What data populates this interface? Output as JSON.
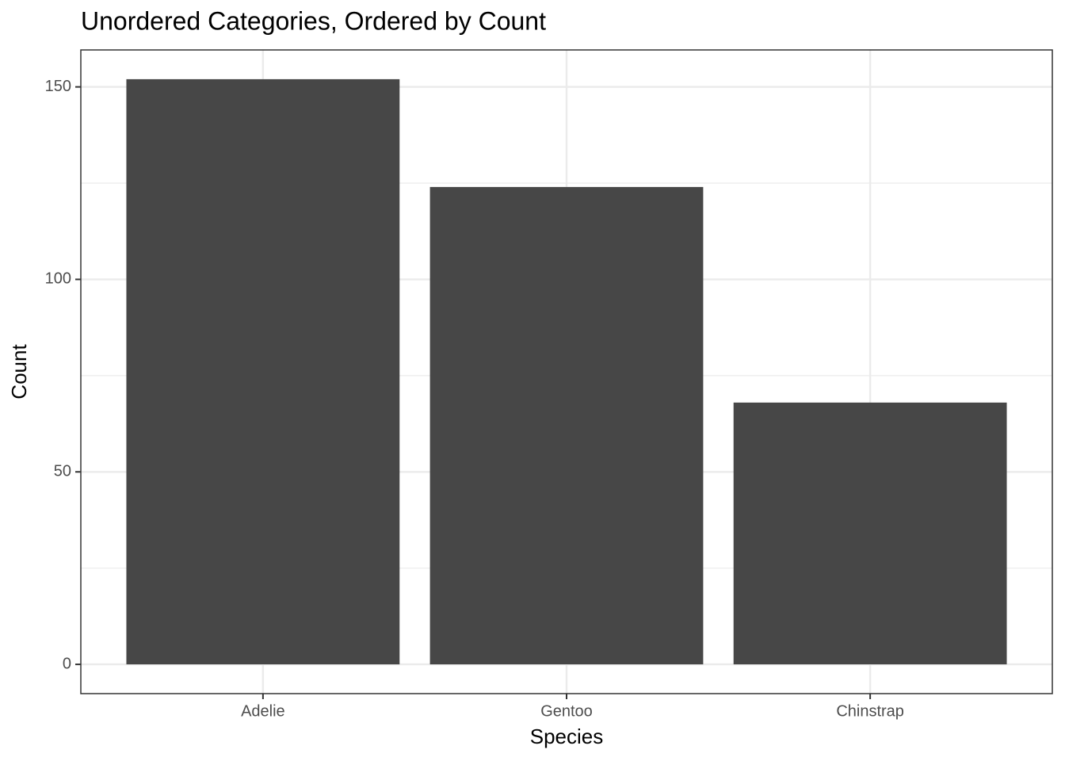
{
  "chart_data": {
    "type": "bar",
    "title": "Unordered Categories, Ordered by Count",
    "x_label": "Species",
    "y_label": "Count",
    "categories": [
      "Adelie",
      "Gentoo",
      "Chinstrap"
    ],
    "values": [
      152,
      124,
      68
    ],
    "color": "#474747",
    "ylim": [
      -7.6,
      159.6
    ],
    "yticks": [
      0,
      50,
      100,
      150
    ],
    "yminor": [
      25,
      75,
      125
    ],
    "grid": true
  }
}
